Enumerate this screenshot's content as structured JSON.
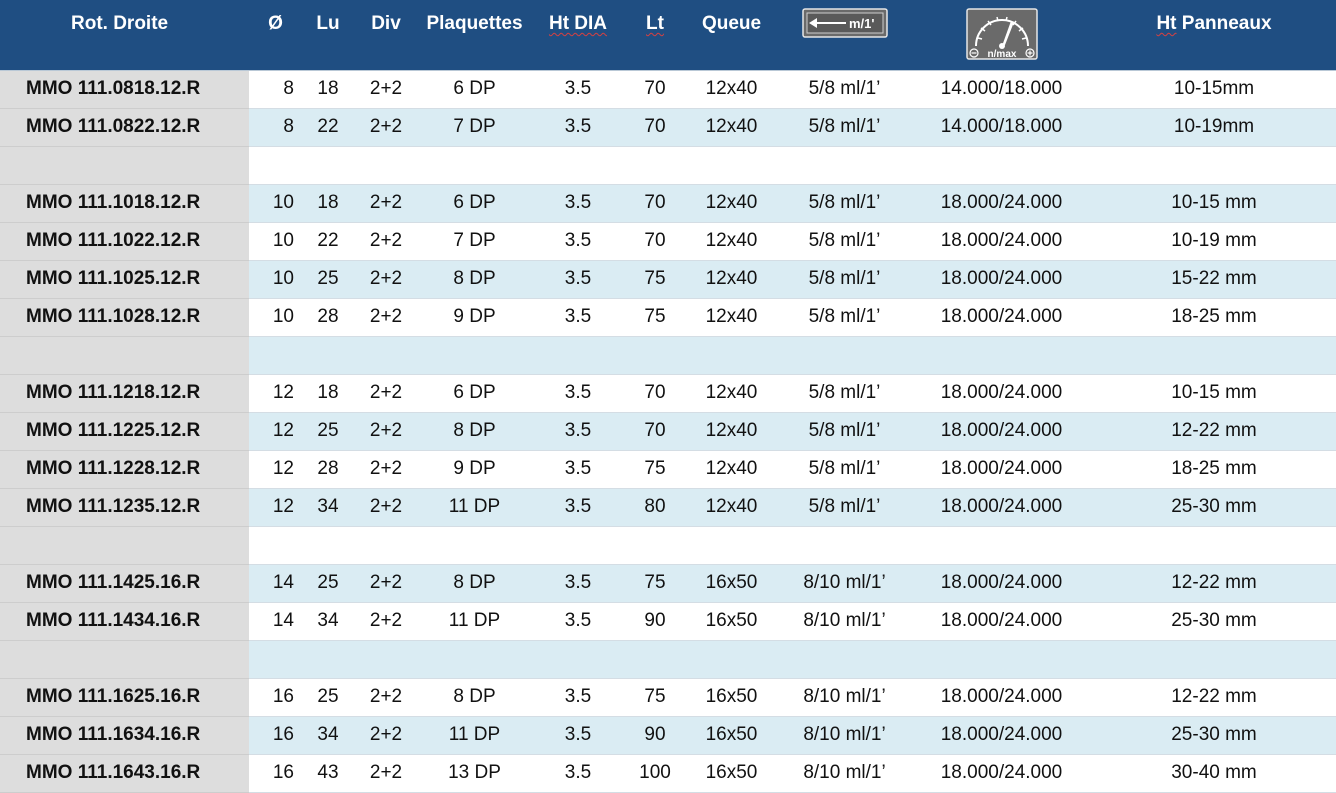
{
  "header": {
    "ref_label": "Rot. Droite",
    "diameter": "Ø",
    "lu": "Lu",
    "div": "Div",
    "plaquettes": "Plaquettes",
    "ht_dia": "Ht DIA",
    "lt": "Lt",
    "queue": "Queue",
    "feed_icon_text": "m/1'",
    "rpm_icon_text": "n/max",
    "ht_panneaux": "Ht Panneaux"
  },
  "rows": [
    {
      "ref": "MMO 111.0818.12.R",
      "d": "8",
      "lu": "18",
      "div": "2+2",
      "plaq": "6 DP",
      "ht": "3.5",
      "lt": "70",
      "queue": "12x40",
      "feed": "5/8 ml/1’",
      "rpm": "14.000/18.000",
      "pan": "10-15mm"
    },
    {
      "ref": "MMO 111.0822.12.R",
      "d": "8",
      "lu": "22",
      "div": "2+2",
      "plaq": "7 DP",
      "ht": "3.5",
      "lt": "70",
      "queue": "12x40",
      "feed": "5/8 ml/1’",
      "rpm": "14.000/18.000",
      "pan": "10-19mm"
    },
    {
      "spacer": true
    },
    {
      "ref": "MMO 111.1018.12.R",
      "d": "10",
      "lu": "18",
      "div": "2+2",
      "plaq": "6 DP",
      "ht": "3.5",
      "lt": "70",
      "queue": "12x40",
      "feed": "5/8 ml/1’",
      "rpm": "18.000/24.000",
      "pan": "10-15 mm"
    },
    {
      "ref": "MMO 111.1022.12.R",
      "d": "10",
      "lu": "22",
      "div": "2+2",
      "plaq": "7 DP",
      "ht": "3.5",
      "lt": "70",
      "queue": "12x40",
      "feed": "5/8 ml/1’",
      "rpm": "18.000/24.000",
      "pan": "10-19 mm"
    },
    {
      "ref": "MMO 111.1025.12.R",
      "d": "10",
      "lu": "25",
      "div": "2+2",
      "plaq": "8 DP",
      "ht": "3.5",
      "lt": "75",
      "queue": "12x40",
      "feed": "5/8 ml/1’",
      "rpm": "18.000/24.000",
      "pan": "15-22 mm"
    },
    {
      "ref": "MMO 111.1028.12.R",
      "d": "10",
      "lu": "28",
      "div": "2+2",
      "plaq": "9 DP",
      "ht": "3.5",
      "lt": "75",
      "queue": "12x40",
      "feed": "5/8 ml/1’",
      "rpm": "18.000/24.000",
      "pan": "18-25 mm"
    },
    {
      "spacer": true
    },
    {
      "ref": "MMO 111.1218.12.R",
      "d": "12",
      "lu": "18",
      "div": "2+2",
      "plaq": "6 DP",
      "ht": "3.5",
      "lt": "70",
      "queue": "12x40",
      "feed": "5/8 ml/1’",
      "rpm": "18.000/24.000",
      "pan": "10-15 mm"
    },
    {
      "ref": "MMO 111.1225.12.R",
      "d": "12",
      "lu": "25",
      "div": "2+2",
      "plaq": "8 DP",
      "ht": "3.5",
      "lt": "70",
      "queue": "12x40",
      "feed": "5/8 ml/1’",
      "rpm": "18.000/24.000",
      "pan": "12-22 mm"
    },
    {
      "ref": "MMO 111.1228.12.R",
      "d": "12",
      "lu": "28",
      "div": "2+2",
      "plaq": "9 DP",
      "ht": "3.5",
      "lt": "75",
      "queue": "12x40",
      "feed": "5/8 ml/1’",
      "rpm": "18.000/24.000",
      "pan": "18-25 mm"
    },
    {
      "ref": "MMO 111.1235.12.R",
      "d": "12",
      "lu": "34",
      "div": "2+2",
      "plaq": "11 DP",
      "ht": "3.5",
      "lt": "80",
      "queue": "12x40",
      "feed": "5/8 ml/1’",
      "rpm": "18.000/24.000",
      "pan": "25-30 mm"
    },
    {
      "spacer": true
    },
    {
      "ref": "MMO 111.1425.16.R",
      "d": "14",
      "lu": "25",
      "div": "2+2",
      "plaq": "8 DP",
      "ht": "3.5",
      "lt": "75",
      "queue": "16x50",
      "feed": "8/10 ml/1’",
      "rpm": "18.000/24.000",
      "pan": "12-22 mm"
    },
    {
      "ref": "MMO 111.1434.16.R",
      "d": "14",
      "lu": "34",
      "div": "2+2",
      "plaq": "11 DP",
      "ht": "3.5",
      "lt": "90",
      "queue": "16x50",
      "feed": "8/10 ml/1’",
      "rpm": "18.000/24.000",
      "pan": "25-30 mm"
    },
    {
      "spacer": true
    },
    {
      "ref": "MMO 111.1625.16.R",
      "d": "16",
      "lu": "25",
      "div": "2+2",
      "plaq": "8 DP",
      "ht": "3.5",
      "lt": "75",
      "queue": "16x50",
      "feed": "8/10 ml/1’",
      "rpm": "18.000/24.000",
      "pan": "12-22 mm"
    },
    {
      "ref": "MMO 111.1634.16.R",
      "d": "16",
      "lu": "34",
      "div": "2+2",
      "plaq": "11 DP",
      "ht": "3.5",
      "lt": "90",
      "queue": "16x50",
      "feed": "8/10 ml/1’",
      "rpm": "18.000/24.000",
      "pan": "25-30 mm"
    },
    {
      "ref": "MMO 111.1643.16.R",
      "d": "16",
      "lu": "43",
      "div": "2+2",
      "plaq": "13 DP",
      "ht": "3.5",
      "lt": "100",
      "queue": "16x50",
      "feed": "8/10 ml/1’",
      "rpm": "18.000/24.000",
      "pan": "30-40 mm"
    }
  ]
}
